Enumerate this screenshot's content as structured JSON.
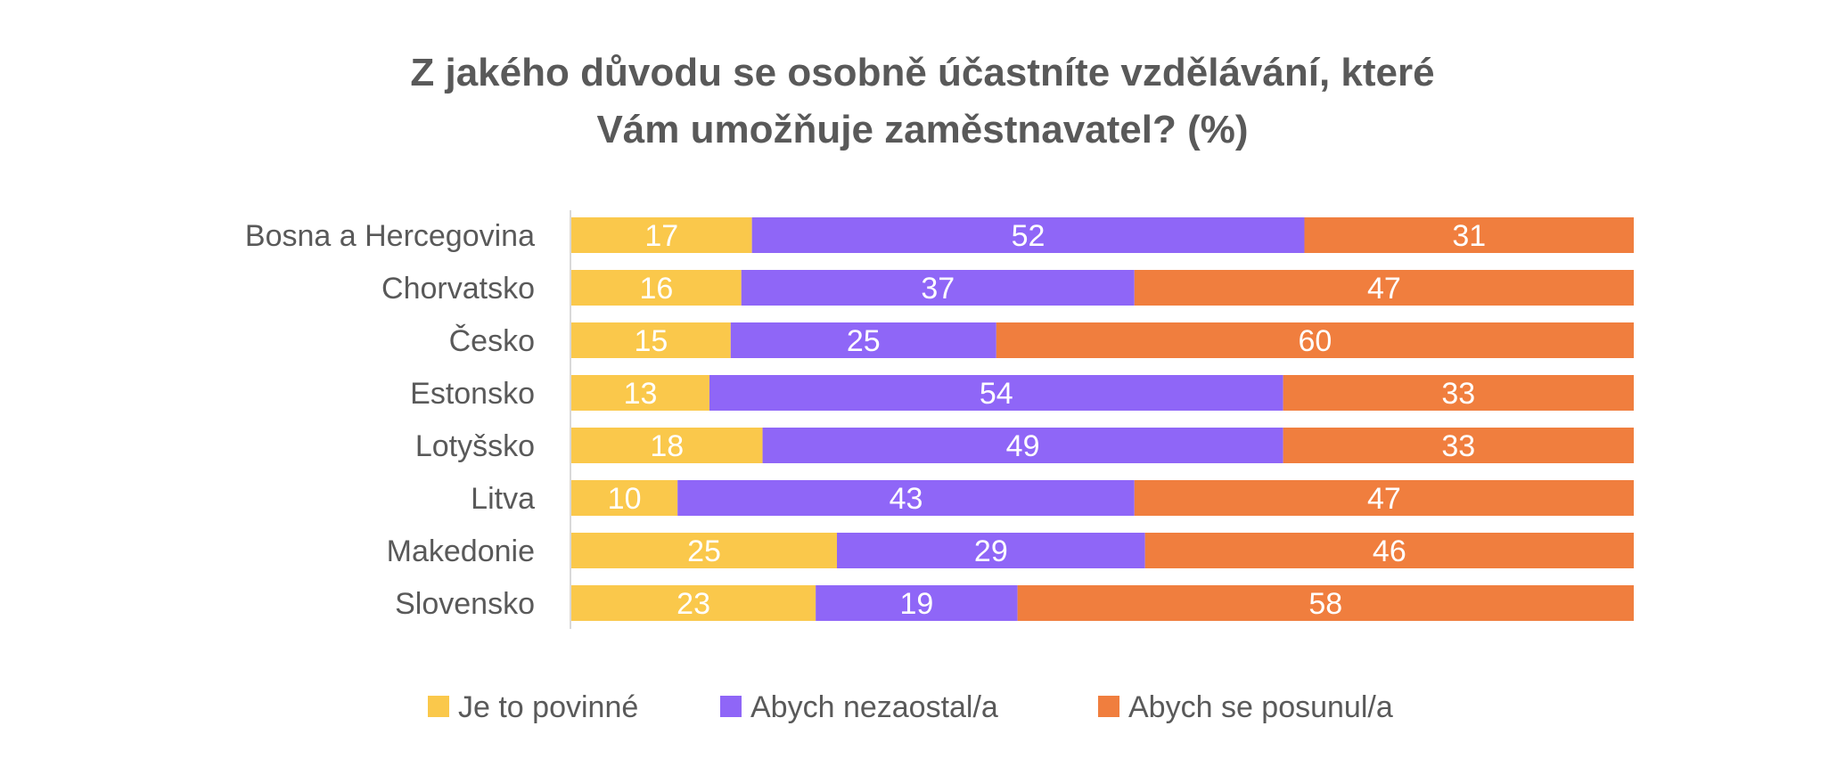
{
  "chart_data": {
    "type": "bar",
    "orientation": "horizontal",
    "stacked": true,
    "title_lines": [
      "Z jakého důvodu se osobně účastníte vzdělávání, které",
      "Vám umožňuje zaměstnavatel?  (%)"
    ],
    "categories": [
      "Bosna a Hercegovina",
      "Chorvatsko",
      "Česko",
      "Estonsko",
      "Lotyšsko",
      "Litva",
      "Makedonie",
      "Slovensko"
    ],
    "series": [
      {
        "name": "Je to povinné",
        "color": "#FAC84B",
        "values": [
          17,
          16,
          15,
          13,
          18,
          10,
          25,
          23
        ]
      },
      {
        "name": "Abych nezaostal/a",
        "color": "#8F66F7",
        "values": [
          52,
          37,
          25,
          54,
          49,
          43,
          29,
          19
        ]
      },
      {
        "name": "Abych se posunul/a",
        "color": "#F07E3E",
        "values": [
          31,
          47,
          60,
          33,
          33,
          47,
          46,
          58
        ]
      }
    ],
    "xlim": [
      0,
      100
    ],
    "grid": false,
    "legend_position": "bottom",
    "data_labels": true
  }
}
